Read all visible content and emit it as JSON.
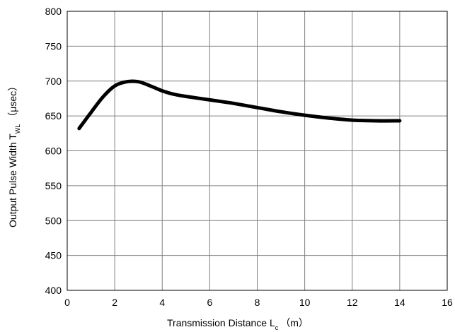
{
  "chart_data": {
    "type": "line",
    "title": "",
    "xlabel": {
      "main": "Transmission Distance L",
      "sub": "c",
      "unit": "（m）"
    },
    "ylabel": {
      "main": "Output Pulse Width T",
      "sub": "WL",
      "unit": "（μsec）"
    },
    "xlim": [
      0,
      16
    ],
    "ylim": [
      400,
      800
    ],
    "xticks": [
      0,
      2,
      4,
      6,
      8,
      10,
      12,
      14,
      16
    ],
    "yticks": [
      400,
      450,
      500,
      550,
      600,
      650,
      700,
      750,
      800
    ],
    "grid": true,
    "line_color": "#000000",
    "series": [
      {
        "x": [
          0.5,
          1.0,
          1.5,
          2.0,
          2.5,
          3.0,
          3.5,
          4.0,
          4.5,
          5.0,
          6.0,
          7.0,
          8.0,
          9.0,
          10.0,
          11.0,
          12.0,
          13.0,
          14.0
        ],
        "y": [
          632,
          655,
          677,
          693,
          699,
          699,
          693,
          686,
          681,
          678,
          673,
          668,
          662,
          656,
          651,
          647,
          644,
          643,
          643
        ]
      }
    ]
  }
}
